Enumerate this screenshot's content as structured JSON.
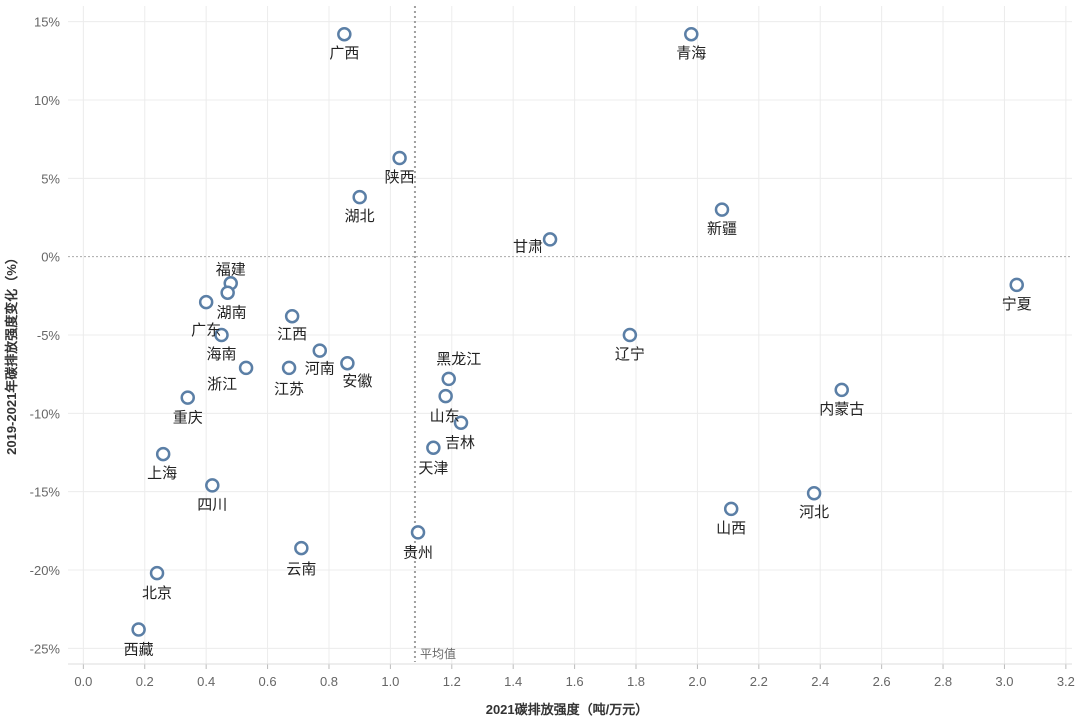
{
  "chart_data": {
    "type": "scatter",
    "xlabel": "2021碳排放强度（吨/万元）",
    "ylabel": "2019-2021年碳排放强度变化（%）",
    "xlim": [
      -0.05,
      3.22
    ],
    "ylim": [
      -26,
      16
    ],
    "x_ticks": [
      "0.0",
      "0.2",
      "0.4",
      "0.6",
      "0.8",
      "1.0",
      "1.2",
      "1.4",
      "1.6",
      "1.8",
      "2.0",
      "2.2",
      "2.4",
      "2.6",
      "2.8",
      "3.0",
      "3.2"
    ],
    "y_ticks": [
      "15%",
      "10%",
      "5%",
      "0%",
      "-5%",
      "-10%",
      "-15%",
      "-20%",
      "-25%"
    ],
    "grid": true,
    "marker_color": "#5b7fa6",
    "average_line": {
      "x": 1.08,
      "label": "平均值"
    },
    "points": [
      {
        "label": "广西",
        "x": 0.85,
        "y": 14.2
      },
      {
        "label": "青海",
        "x": 1.98,
        "y": 14.2
      },
      {
        "label": "陕西",
        "x": 1.03,
        "y": 6.3
      },
      {
        "label": "湖北",
        "x": 0.9,
        "y": 3.8
      },
      {
        "label": "甘肃",
        "x": 1.52,
        "y": 1.1
      },
      {
        "label": "新疆",
        "x": 2.08,
        "y": 3.0
      },
      {
        "label": "宁夏",
        "x": 3.04,
        "y": -1.8
      },
      {
        "label": "福建",
        "x": 0.48,
        "y": -1.7
      },
      {
        "label": "湖南",
        "x": 0.47,
        "y": -2.3
      },
      {
        "label": "广东",
        "x": 0.4,
        "y": -2.9
      },
      {
        "label": "海南",
        "x": 0.45,
        "y": -5.0
      },
      {
        "label": "江西",
        "x": 0.68,
        "y": -3.8
      },
      {
        "label": "河南",
        "x": 0.77,
        "y": -6.0
      },
      {
        "label": "安徽",
        "x": 0.86,
        "y": -6.8
      },
      {
        "label": "浙江",
        "x": 0.53,
        "y": -7.1
      },
      {
        "label": "江苏",
        "x": 0.67,
        "y": -7.1
      },
      {
        "label": "重庆",
        "x": 0.34,
        "y": -9.0
      },
      {
        "label": "黑龙江",
        "x": 1.19,
        "y": -7.8
      },
      {
        "label": "山东",
        "x": 1.18,
        "y": -8.9
      },
      {
        "label": "吉林",
        "x": 1.23,
        "y": -10.6
      },
      {
        "label": "天津",
        "x": 1.14,
        "y": -12.2
      },
      {
        "label": "辽宁",
        "x": 1.78,
        "y": -5.0
      },
      {
        "label": "内蒙古",
        "x": 2.47,
        "y": -8.5
      },
      {
        "label": "上海",
        "x": 0.26,
        "y": -12.6
      },
      {
        "label": "四川",
        "x": 0.42,
        "y": -14.6
      },
      {
        "label": "山西",
        "x": 2.11,
        "y": -16.1
      },
      {
        "label": "河北",
        "x": 2.38,
        "y": -15.1
      },
      {
        "label": "贵州",
        "x": 1.09,
        "y": -17.6
      },
      {
        "label": "云南",
        "x": 0.71,
        "y": -18.6
      },
      {
        "label": "北京",
        "x": 0.24,
        "y": -20.2
      },
      {
        "label": "西藏",
        "x": 0.18,
        "y": -23.8
      }
    ]
  }
}
